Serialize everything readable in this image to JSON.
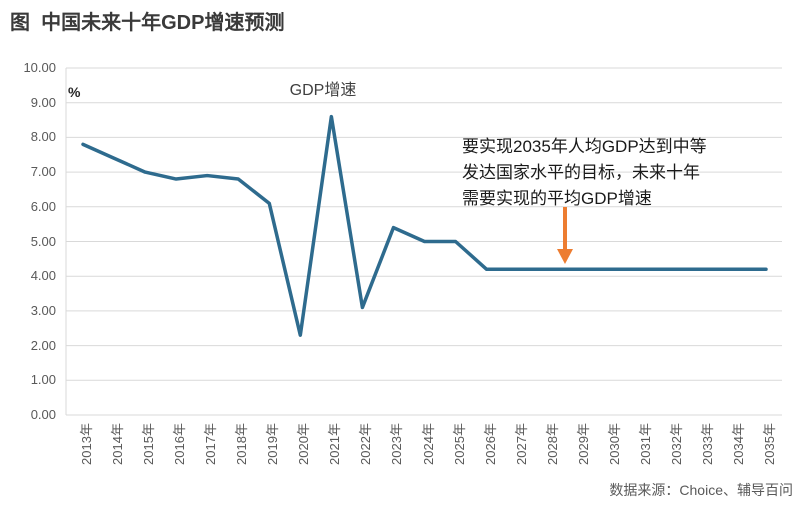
{
  "page": {
    "title": "图  中国未来十年GDP增速预测",
    "source": "数据来源：Choice、辅导百问"
  },
  "chart_data": {
    "type": "line",
    "title": "GDP增速",
    "unit_label": "%",
    "categories": [
      "2013年",
      "2014年",
      "2015年",
      "2016年",
      "2017年",
      "2018年",
      "2019年",
      "2020年",
      "2021年",
      "2022年",
      "2023年",
      "2024年",
      "2025年",
      "2026年",
      "2027年",
      "2028年",
      "2029年",
      "2030年",
      "2031年",
      "2032年",
      "2033年",
      "2034年",
      "2035年"
    ],
    "series": [
      {
        "name": "GDP增速",
        "values": [
          7.8,
          7.4,
          7.0,
          6.8,
          6.9,
          6.8,
          6.1,
          2.3,
          8.6,
          3.1,
          5.4,
          5.0,
          5.0,
          4.2,
          4.2,
          4.2,
          4.2,
          4.2,
          4.2,
          4.2,
          4.2,
          4.2,
          4.2
        ]
      }
    ],
    "ylim": [
      0,
      10
    ],
    "yticks": [
      "0.00",
      "1.00",
      "2.00",
      "3.00",
      "4.00",
      "5.00",
      "6.00",
      "7.00",
      "8.00",
      "9.00",
      "10.00"
    ],
    "grid": true,
    "legend": "none",
    "annotation": {
      "lines": [
        "要实现2035年人均GDP达到中等",
        "发达国家水平的目标，未来十年",
        "需要实现的平均GDP增速"
      ],
      "arrow": "down"
    },
    "colors": {
      "line": "#2e6b8e",
      "arrow": "#ED7D31",
      "grid": "#d9d9d9",
      "axis_label": "#595959",
      "text": "#3f3f3f"
    }
  }
}
